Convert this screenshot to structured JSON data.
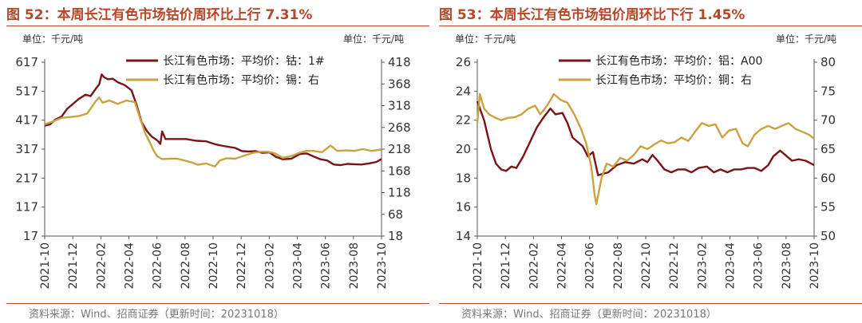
{
  "colors": {
    "title": "#b7472a",
    "series_primary": "#7a1419",
    "series_secondary": "#c8a33f",
    "axis": "#555555"
  },
  "chart_data": [
    {
      "type": "line",
      "title": "图 52：本周长江有色市场钴价周环比上行 7.31%",
      "left_unit": "单位：千元/吨",
      "right_unit": "单位：千元/吨",
      "xlabels": [
        "2021-10",
        "2021-12",
        "2022-02",
        "2022-04",
        "2022-06",
        "2022-08",
        "2022-10",
        "2022-12",
        "2023-02",
        "2023-04",
        "2023-06",
        "2023-08",
        "2023-10"
      ],
      "y_left": {
        "ticks": [
          17,
          117,
          217,
          317,
          417,
          517,
          617
        ],
        "range": [
          17,
          617
        ]
      },
      "y_right": {
        "ticks": [
          18,
          68,
          118,
          168,
          218,
          268,
          318,
          368,
          418
        ],
        "range": [
          18,
          418
        ]
      },
      "series": [
        {
          "name": "长江有色市场：平均价：钴：1#",
          "axis": "left",
          "values": [
            [
              0,
              398
            ],
            [
              0.3,
              402
            ],
            [
              0.6,
              418
            ],
            [
              1,
              430
            ],
            [
              1.3,
              455
            ],
            [
              1.6,
              470
            ],
            [
              2,
              490
            ],
            [
              2.4,
              505
            ],
            [
              2.7,
              500
            ],
            [
              3,
              525
            ],
            [
              3.2,
              540
            ],
            [
              3.35,
              575
            ],
            [
              3.5,
              565
            ],
            [
              3.7,
              558
            ],
            [
              4,
              560
            ],
            [
              4.3,
              548
            ],
            [
              4.7,
              538
            ],
            [
              5.1,
              520
            ],
            [
              5.4,
              470
            ],
            [
              5.7,
              410
            ],
            [
              6,
              380
            ],
            [
              6.3,
              360
            ],
            [
              6.6,
              348
            ],
            [
              6.8,
              335
            ],
            [
              6.9,
              378
            ],
            [
              7.1,
              352
            ],
            [
              7.6,
              352
            ],
            [
              8.3,
              352
            ],
            [
              8.9,
              346
            ],
            [
              9.5,
              344
            ],
            [
              10,
              334
            ],
            [
              10.5,
              328
            ],
            [
              11.2,
              321
            ],
            [
              11.6,
              310
            ],
            [
              12,
              309
            ],
            [
              12.4,
              310
            ],
            [
              12.8,
              304
            ],
            [
              13.2,
              306
            ],
            [
              13.6,
              290
            ],
            [
              14,
              282
            ],
            [
              14.5,
              284
            ],
            [
              15,
              300
            ],
            [
              15.4,
              302
            ],
            [
              15.8,
              292
            ],
            [
              16.2,
              282
            ],
            [
              16.6,
              278
            ],
            [
              17,
              264
            ],
            [
              17.4,
              262
            ],
            [
              17.8,
              266
            ],
            [
              18.2,
              265
            ],
            [
              18.6,
              264
            ],
            [
              19.1,
              268
            ],
            [
              19.5,
              273
            ],
            [
              19.8,
              283
            ]
          ]
        },
        {
          "name": "长江有色市场：平均价：锡：右",
          "axis": "right",
          "values": [
            [
              0,
              275
            ],
            [
              0.5,
              282
            ],
            [
              1,
              290
            ],
            [
              1.5,
              292
            ],
            [
              2,
              294
            ],
            [
              2.5,
              300
            ],
            [
              3,
              328
            ],
            [
              3.2,
              337
            ],
            [
              3.4,
              325
            ],
            [
              3.8,
              330
            ],
            [
              4.3,
              322
            ],
            [
              4.8,
              330
            ],
            [
              5.3,
              326
            ],
            [
              5.6,
              290
            ],
            [
              5.9,
              255
            ],
            [
              6.2,
              232
            ],
            [
              6.4,
              215
            ],
            [
              6.6,
              202
            ],
            [
              6.9,
              195
            ],
            [
              7.3,
              196
            ],
            [
              7.8,
              196
            ],
            [
              8.2,
              192
            ],
            [
              8.6,
              188
            ],
            [
              9,
              182
            ],
            [
              9.5,
              185
            ],
            [
              10,
              178
            ],
            [
              10.3,
              192
            ],
            [
              10.7,
              197
            ],
            [
              11.2,
              196
            ],
            [
              11.8,
              204
            ],
            [
              12.3,
              210
            ],
            [
              12.7,
              212
            ],
            [
              13.1,
              212
            ],
            [
              13.5,
              209
            ],
            [
              14,
              198
            ],
            [
              14.5,
              202
            ],
            [
              15,
              210
            ],
            [
              15.4,
              214
            ],
            [
              15.8,
              214
            ],
            [
              16.3,
              211
            ],
            [
              16.8,
              226
            ],
            [
              17.2,
              214
            ],
            [
              17.7,
              215
            ],
            [
              18.2,
              214
            ],
            [
              18.7,
              218
            ],
            [
              19.2,
              214
            ],
            [
              19.8,
              217
            ]
          ]
        }
      ]
    },
    {
      "type": "line",
      "title": "图 53：本周长江有色市场铝价周环比下行 1.45%",
      "left_unit": "单位：千元/吨",
      "right_unit": "单位：千元/吨",
      "xlabels": [
        "2021-10",
        "2021-12",
        "2022-02",
        "2022-04",
        "2022-06",
        "2022-08",
        "2022-10",
        "2022-12",
        "2023-02",
        "2023-04",
        "2023-06",
        "2023-08",
        "2023-10"
      ],
      "y_left": {
        "ticks": [
          14,
          16,
          18,
          20,
          22,
          24,
          26
        ],
        "range": [
          14,
          26
        ]
      },
      "y_right": {
        "ticks": [
          50,
          55,
          60,
          65,
          70,
          75,
          80
        ],
        "range": [
          50,
          80
        ]
      },
      "series": [
        {
          "name": "长江有色市场：平均价：铝：A00",
          "axis": "left",
          "values": [
            [
              0,
              23.3
            ],
            [
              0.4,
              22.0
            ],
            [
              0.8,
              20.0
            ],
            [
              1.1,
              19.0
            ],
            [
              1.4,
              18.6
            ],
            [
              1.7,
              18.5
            ],
            [
              2,
              18.8
            ],
            [
              2.3,
              18.7
            ],
            [
              2.7,
              19.5
            ],
            [
              3.1,
              20.5
            ],
            [
              3.5,
              21.5
            ],
            [
              3.9,
              22.2
            ],
            [
              4.3,
              22.8
            ],
            [
              4.6,
              22.4
            ],
            [
              5,
              22.5
            ],
            [
              5.3,
              21.8
            ],
            [
              5.6,
              20.8
            ],
            [
              5.9,
              20.5
            ],
            [
              6.2,
              20.2
            ],
            [
              6.5,
              19.5
            ],
            [
              6.8,
              19.8
            ],
            [
              7.1,
              18.2
            ],
            [
              7.4,
              18.3
            ],
            [
              7.7,
              18.4
            ],
            [
              8.2,
              18.9
            ],
            [
              8.7,
              19.1
            ],
            [
              9.2,
              19.0
            ],
            [
              9.7,
              19.3
            ],
            [
              10,
              19.1
            ],
            [
              10.3,
              19.6
            ],
            [
              10.6,
              19.2
            ],
            [
              11,
              18.6
            ],
            [
              11.4,
              18.4
            ],
            [
              11.8,
              18.6
            ],
            [
              12.2,
              18.6
            ],
            [
              12.6,
              18.4
            ],
            [
              13,
              18.7
            ],
            [
              13.5,
              18.8
            ],
            [
              13.9,
              18.4
            ],
            [
              14.3,
              18.6
            ],
            [
              14.7,
              18.4
            ],
            [
              15.1,
              18.6
            ],
            [
              15.5,
              18.6
            ],
            [
              15.9,
              18.7
            ],
            [
              16.3,
              18.7
            ],
            [
              16.7,
              18.5
            ],
            [
              17.1,
              18.9
            ],
            [
              17.4,
              19.5
            ],
            [
              17.8,
              19.9
            ],
            [
              18.1,
              19.6
            ],
            [
              18.5,
              19.2
            ],
            [
              18.9,
              19.3
            ],
            [
              19.3,
              19.2
            ],
            [
              19.8,
              18.9
            ]
          ]
        },
        {
          "name": "长江有色市场：平均价：铜：右",
          "axis": "right",
          "values": [
            [
              0,
              69.5
            ],
            [
              0.15,
              74.5
            ],
            [
              0.4,
              72.0
            ],
            [
              0.7,
              71.0
            ],
            [
              1,
              70.5
            ],
            [
              1.4,
              70.0
            ],
            [
              1.8,
              70.4
            ],
            [
              2.2,
              70.5
            ],
            [
              2.6,
              71.0
            ],
            [
              3,
              72.0
            ],
            [
              3.4,
              72.5
            ],
            [
              3.7,
              71.0
            ],
            [
              4.1,
              72.5
            ],
            [
              4.5,
              74.5
            ],
            [
              4.9,
              73.5
            ],
            [
              5.3,
              73.0
            ],
            [
              5.7,
              71.0
            ],
            [
              6.1,
              68.5
            ],
            [
              6.4,
              66.0
            ],
            [
              6.7,
              62.0
            ],
            [
              6.9,
              57.0
            ],
            [
              7,
              55.5
            ],
            [
              7.3,
              60.0
            ],
            [
              7.6,
              62.5
            ],
            [
              8,
              62.0
            ],
            [
              8.4,
              63.5
            ],
            [
              8.8,
              63.0
            ],
            [
              9.2,
              64.0
            ],
            [
              9.6,
              65.5
            ],
            [
              10,
              65.0
            ],
            [
              10.4,
              65.8
            ],
            [
              10.8,
              66.5
            ],
            [
              11.2,
              66.0
            ],
            [
              11.6,
              66.2
            ],
            [
              12,
              67.0
            ],
            [
              12.4,
              66.4
            ],
            [
              12.8,
              68.0
            ],
            [
              13.2,
              69.5
            ],
            [
              13.6,
              69.0
            ],
            [
              14,
              69.3
            ],
            [
              14.4,
              67.0
            ],
            [
              14.8,
              68.2
            ],
            [
              15.2,
              68.5
            ],
            [
              15.6,
              66.0
            ],
            [
              15.9,
              65.5
            ],
            [
              16.3,
              67.5
            ],
            [
              16.7,
              68.5
            ],
            [
              17.1,
              69.0
            ],
            [
              17.5,
              68.5
            ],
            [
              17.9,
              69.0
            ],
            [
              18.3,
              69.5
            ],
            [
              18.7,
              68.5
            ],
            [
              19.1,
              68.0
            ],
            [
              19.5,
              67.5
            ],
            [
              19.8,
              66.8
            ]
          ]
        }
      ]
    }
  ],
  "source": "资料来源：Wind、招商证券（更新时间：20231018）"
}
